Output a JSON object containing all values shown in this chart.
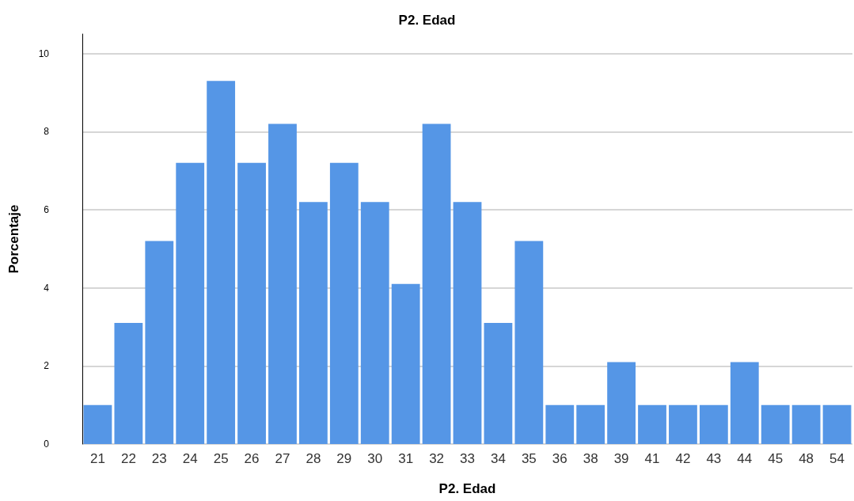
{
  "chart_data": {
    "type": "bar",
    "title": "P2. Edad",
    "xlabel": "P2. Edad",
    "ylabel": "Porcentaje",
    "categories": [
      "21",
      "22",
      "23",
      "24",
      "25",
      "26",
      "27",
      "28",
      "29",
      "30",
      "31",
      "32",
      "33",
      "34",
      "35",
      "36",
      "38",
      "39",
      "41",
      "42",
      "43",
      "44",
      "45",
      "48",
      "54"
    ],
    "values": [
      1.0,
      3.1,
      5.2,
      7.2,
      9.3,
      7.2,
      8.2,
      6.2,
      7.2,
      6.2,
      4.1,
      8.2,
      6.2,
      3.1,
      5.2,
      1.0,
      1.0,
      2.1,
      1.0,
      1.0,
      1.0,
      2.1,
      1.0,
      1.0,
      1.0
    ],
    "color": "#5596e6",
    "ylim": [
      0,
      10.5
    ],
    "yticks": [
      0,
      2,
      4,
      6,
      8,
      10
    ],
    "grid": "y"
  }
}
